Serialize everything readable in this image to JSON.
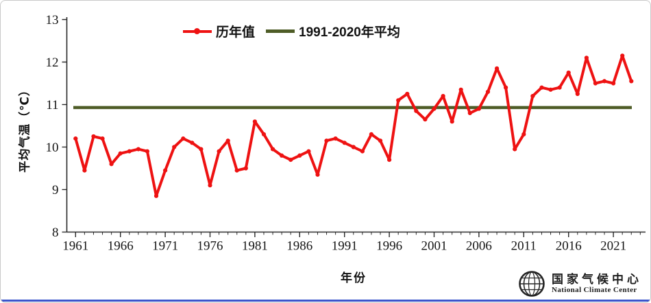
{
  "chart_data": {
    "type": "line",
    "title": "",
    "xlabel": "年份",
    "ylabel": "平均气温（℃）",
    "ylim": [
      8,
      13
    ],
    "y_ticks": [
      8,
      9,
      10,
      11,
      12,
      13
    ],
    "x_major_ticks": [
      1961,
      1966,
      1971,
      1976,
      1981,
      1986,
      1991,
      1996,
      2001,
      2006,
      2011,
      2016,
      2021
    ],
    "x_range": [
      1961,
      2024
    ],
    "x_minor_step": 1,
    "grid": false,
    "legend_position": "top-center",
    "series": [
      {
        "name": "历年值",
        "type": "line-with-markers",
        "color": "#ee1212",
        "years": [
          1961,
          1962,
          1963,
          1964,
          1965,
          1966,
          1967,
          1968,
          1969,
          1970,
          1971,
          1972,
          1973,
          1974,
          1975,
          1976,
          1977,
          1978,
          1979,
          1980,
          1981,
          1982,
          1983,
          1984,
          1985,
          1986,
          1987,
          1988,
          1989,
          1990,
          1991,
          1992,
          1993,
          1994,
          1995,
          1996,
          1997,
          1998,
          1999,
          2000,
          2001,
          2002,
          2003,
          2004,
          2005,
          2006,
          2007,
          2008,
          2009,
          2010,
          2011,
          2012,
          2013,
          2014,
          2015,
          2016,
          2017,
          2018,
          2019,
          2020,
          2021,
          2022,
          2023
        ],
        "values": [
          10.2,
          9.45,
          10.25,
          10.2,
          9.6,
          9.85,
          9.9,
          9.95,
          9.9,
          8.85,
          9.45,
          10.0,
          10.2,
          10.1,
          9.95,
          9.1,
          9.9,
          10.15,
          9.45,
          9.5,
          10.6,
          10.3,
          9.95,
          9.8,
          9.7,
          9.8,
          9.9,
          9.35,
          10.15,
          10.2,
          10.1,
          10.0,
          9.9,
          10.3,
          10.15,
          9.7,
          11.1,
          11.25,
          10.85,
          10.65,
          10.9,
          11.2,
          10.6,
          11.35,
          10.8,
          10.9,
          11.3,
          11.85,
          11.4,
          9.95,
          10.3,
          11.2,
          11.4,
          11.35,
          11.4,
          11.75,
          11.25,
          12.1,
          11.5,
          11.55,
          11.5,
          12.15,
          11.55
        ]
      },
      {
        "name": "1991-2020年平均",
        "type": "horizontal-average-line",
        "color": "#4e5c26",
        "value": 10.93
      }
    ]
  },
  "legend": {
    "items": [
      {
        "label": "历年值",
        "color": "#ee1212"
      },
      {
        "label": "1991-2020年平均",
        "color": "#4e5c26"
      }
    ]
  },
  "axes": {
    "y_title": "平均气温（℃）",
    "x_title": "年份"
  },
  "footer": {
    "logo_cn": "国家气候中心",
    "logo_en": "National Climate Center",
    "accent_bar_color": "#3c55cc"
  },
  "colors": {
    "annual_line": "#ee1212",
    "average_line": "#4e5c26",
    "axis": "#2a2a2a",
    "text": "#151515"
  }
}
